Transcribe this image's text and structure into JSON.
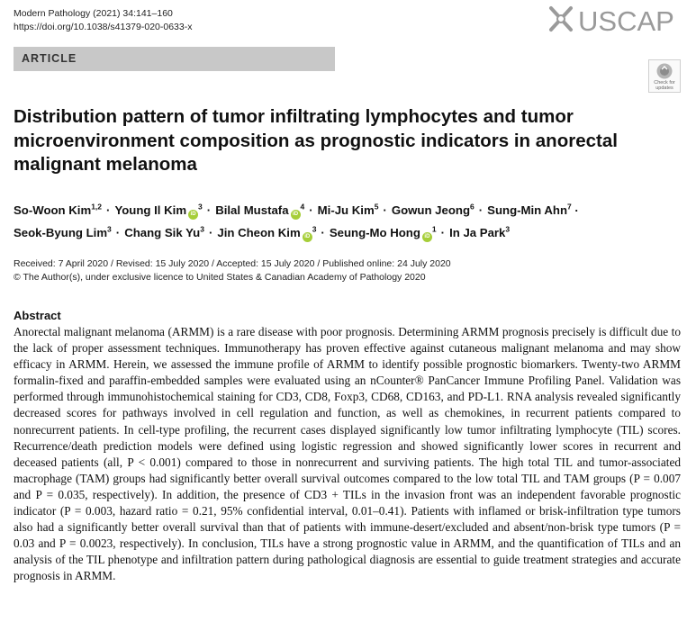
{
  "journal": {
    "citation": "Modern Pathology (2021) 34:141–160",
    "doi": "https://doi.org/10.1038/s41379-020-0633-x"
  },
  "logo": {
    "text": "USCAP",
    "color": "#9a9a9a"
  },
  "section_label": "ARTICLE",
  "check_updates": {
    "line1": "Check for",
    "line2": "updates"
  },
  "title": "Distribution pattern of tumor infiltrating lymphocytes and tumor microenvironment composition as prognostic indicators in anorectal malignant melanoma",
  "authors": [
    {
      "name": "So-Woon Kim",
      "sup": "1,2",
      "orcid": false
    },
    {
      "name": "Young Il Kim",
      "sup": "3",
      "orcid": true
    },
    {
      "name": "Bilal Mustafa",
      "sup": "4",
      "orcid": true
    },
    {
      "name": "Mi-Ju Kim",
      "sup": "5",
      "orcid": false
    },
    {
      "name": "Gowun Jeong",
      "sup": "6",
      "orcid": false
    },
    {
      "name": "Sung-Min Ahn",
      "sup": "7",
      "orcid": false
    },
    {
      "name": "Seok-Byung Lim",
      "sup": "3",
      "orcid": false
    },
    {
      "name": "Chang Sik Yu",
      "sup": "3",
      "orcid": false
    },
    {
      "name": "Jin Cheon Kim",
      "sup": "3",
      "orcid": true
    },
    {
      "name": "Seung-Mo Hong",
      "sup": "1",
      "orcid": true
    },
    {
      "name": "In Ja Park",
      "sup": "3",
      "orcid": false
    }
  ],
  "dates": "Received: 7 April 2020 / Revised: 15 July 2020 / Accepted: 15 July 2020 / Published online: 24 July 2020",
  "copyright": "© The Author(s), under exclusive licence to United States & Canadian Academy of Pathology 2020",
  "abstract": {
    "heading": "Abstract",
    "text": "Anorectal malignant melanoma (ARMM) is a rare disease with poor prognosis. Determining ARMM prognosis precisely is difficult due to the lack of proper assessment techniques. Immunotherapy has proven effective against cutaneous malignant melanoma and may show efficacy in ARMM. Herein, we assessed the immune profile of ARMM to identify possible prognostic biomarkers. Twenty-two ARMM formalin-fixed and paraffin-embedded samples were evaluated using an nCounter® PanCancer Immune Profiling Panel. Validation was performed through immunohistochemical staining for CD3, CD8, Foxp3, CD68, CD163, and PD-L1. RNA analysis revealed significantly decreased scores for pathways involved in cell regulation and function, as well as chemokines, in recurrent patients compared to nonrecurrent patients. In cell-type profiling, the recurrent cases displayed significantly low tumor infiltrating lymphocyte (TIL) scores. Recurrence/death prediction models were defined using logistic regression and showed significantly lower scores in recurrent and deceased patients (all, P < 0.001) compared to those in nonrecurrent and surviving patients. The high total TIL and tumor-associated macrophage (TAM) groups had significantly better overall survival outcomes compared to the low total TIL and TAM groups (P = 0.007 and P = 0.035, respectively). In addition, the presence of CD3 + TILs in the invasion front was an independent favorable prognostic indicator (P = 0.003, hazard ratio = 0.21, 95% confidential interval, 0.01–0.41). Patients with inflamed or brisk-infiltration type tumors also had a significantly better overall survival than that of patients with immune-desert/excluded and absent/non-brisk type tumors (P = 0.03 and P = 0.0023, respectively). In conclusion, TILs have a strong prognostic value in ARMM, and the quantification of TILs and an analysis of the TIL phenotype and infiltration pattern during pathological diagnosis are essential to guide treatment strategies and accurate prognosis in ARMM."
  }
}
